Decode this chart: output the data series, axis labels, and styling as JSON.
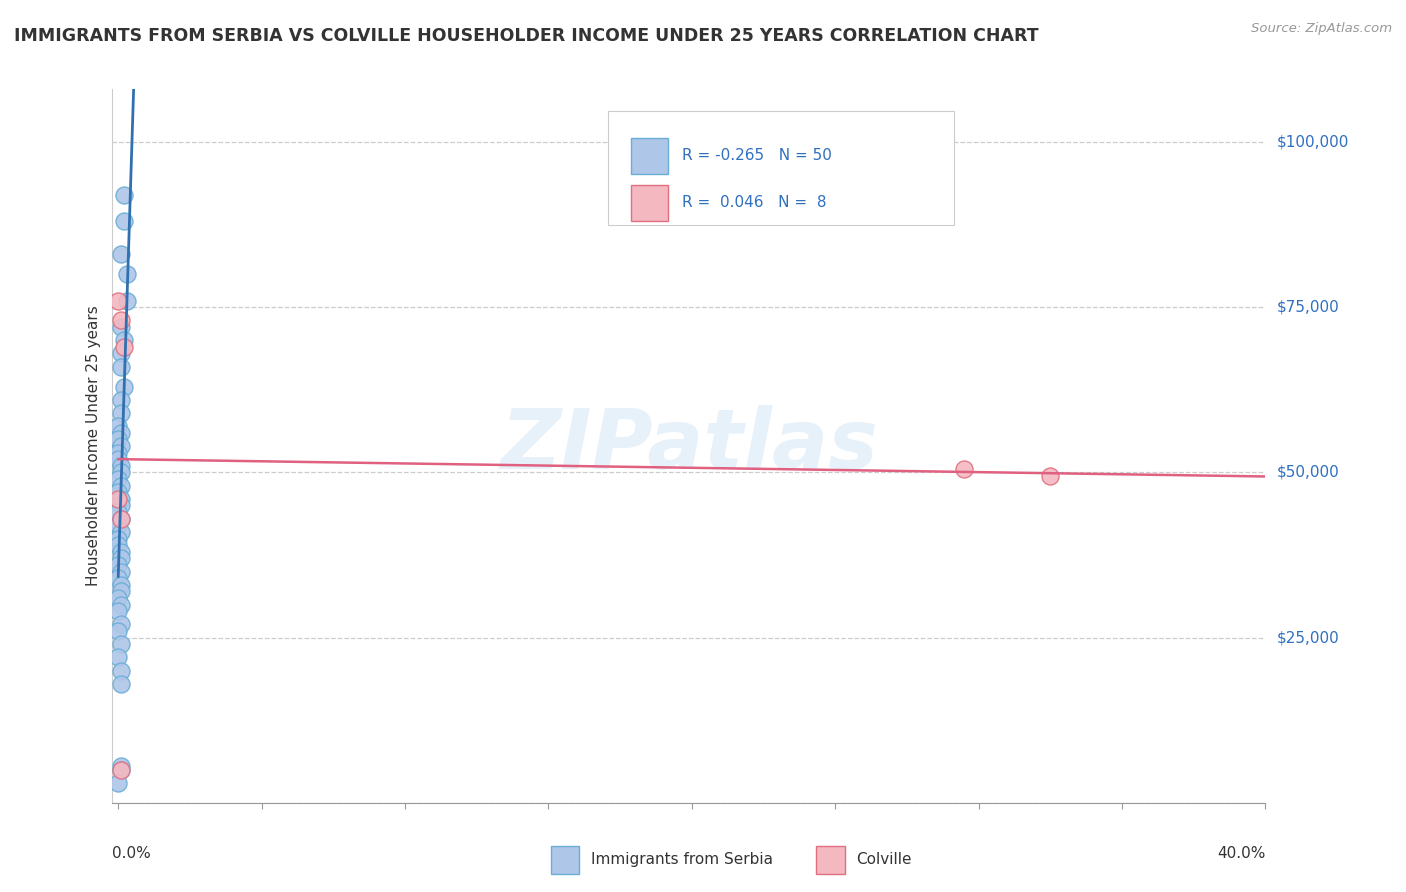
{
  "title": "IMMIGRANTS FROM SERBIA VS COLVILLE HOUSEHOLDER INCOME UNDER 25 YEARS CORRELATION CHART",
  "source": "Source: ZipAtlas.com",
  "ylabel": "Householder Income Under 25 years",
  "xlim": [
    -0.002,
    0.4
  ],
  "ylim": [
    0,
    108000
  ],
  "yticks": [
    0,
    25000,
    50000,
    75000,
    100000
  ],
  "ytick_labels": [
    "",
    "$25,000",
    "$50,000",
    "$75,000",
    "$100,000"
  ],
  "xtick_positions": [
    0.0,
    0.05,
    0.1,
    0.15,
    0.2,
    0.25,
    0.3,
    0.35,
    0.4
  ],
  "serbia_R": -0.265,
  "serbia_N": 50,
  "colville_R": 0.046,
  "colville_N": 8,
  "serbia_color": "#aec6e8",
  "serbia_edge": "#6aaed6",
  "colville_color": "#f4b8c1",
  "colville_edge": "#e07080",
  "serbia_x": [
    0.002,
    0.002,
    0.001,
    0.003,
    0.003,
    0.001,
    0.002,
    0.001,
    0.001,
    0.002,
    0.001,
    0.001,
    0.0,
    0.001,
    0.0,
    0.001,
    0.0,
    0.0,
    0.001,
    0.001,
    0.0,
    0.001,
    0.0,
    0.001,
    0.001,
    0.0,
    0.001,
    0.0,
    0.001,
    0.0,
    0.0,
    0.001,
    0.001,
    0.0,
    0.001,
    0.0,
    0.001,
    0.001,
    0.0,
    0.001,
    0.0,
    0.001,
    0.0,
    0.001,
    0.0,
    0.001,
    0.001,
    0.001,
    0.001,
    0.0
  ],
  "serbia_y": [
    92000,
    88000,
    83000,
    80000,
    76000,
    72000,
    70000,
    68000,
    66000,
    63000,
    61000,
    59000,
    57000,
    56000,
    55000,
    54000,
    53000,
    52000,
    51000,
    50000,
    49000,
    48000,
    47000,
    46000,
    45000,
    44000,
    43000,
    42000,
    41000,
    40000,
    39000,
    38000,
    37000,
    36000,
    35000,
    34000,
    33000,
    32000,
    31000,
    30000,
    29000,
    27000,
    26000,
    24000,
    22000,
    20000,
    18000,
    5500,
    5000,
    3000
  ],
  "colville_x": [
    0.0,
    0.001,
    0.002,
    0.0,
    0.001,
    0.001,
    0.295,
    0.325
  ],
  "colville_y": [
    76000,
    73000,
    69000,
    46000,
    43000,
    5000,
    50500,
    49500
  ],
  "watermark": "ZIPatlas",
  "blue_line_color": "#3070b0",
  "pink_line_color": "#e06080",
  "dashed_line_color": "#8ab0d8",
  "blue_line_solid_end": 0.07,
  "blue_line_dash_end": 0.22,
  "legend_Serbia_label": "R = -0.265   N = 50",
  "legend_Colville_label": "R =  0.046   N =  8",
  "bottom_legend_serbia": "Immigrants from Serbia",
  "bottom_legend_colville": "Colville"
}
